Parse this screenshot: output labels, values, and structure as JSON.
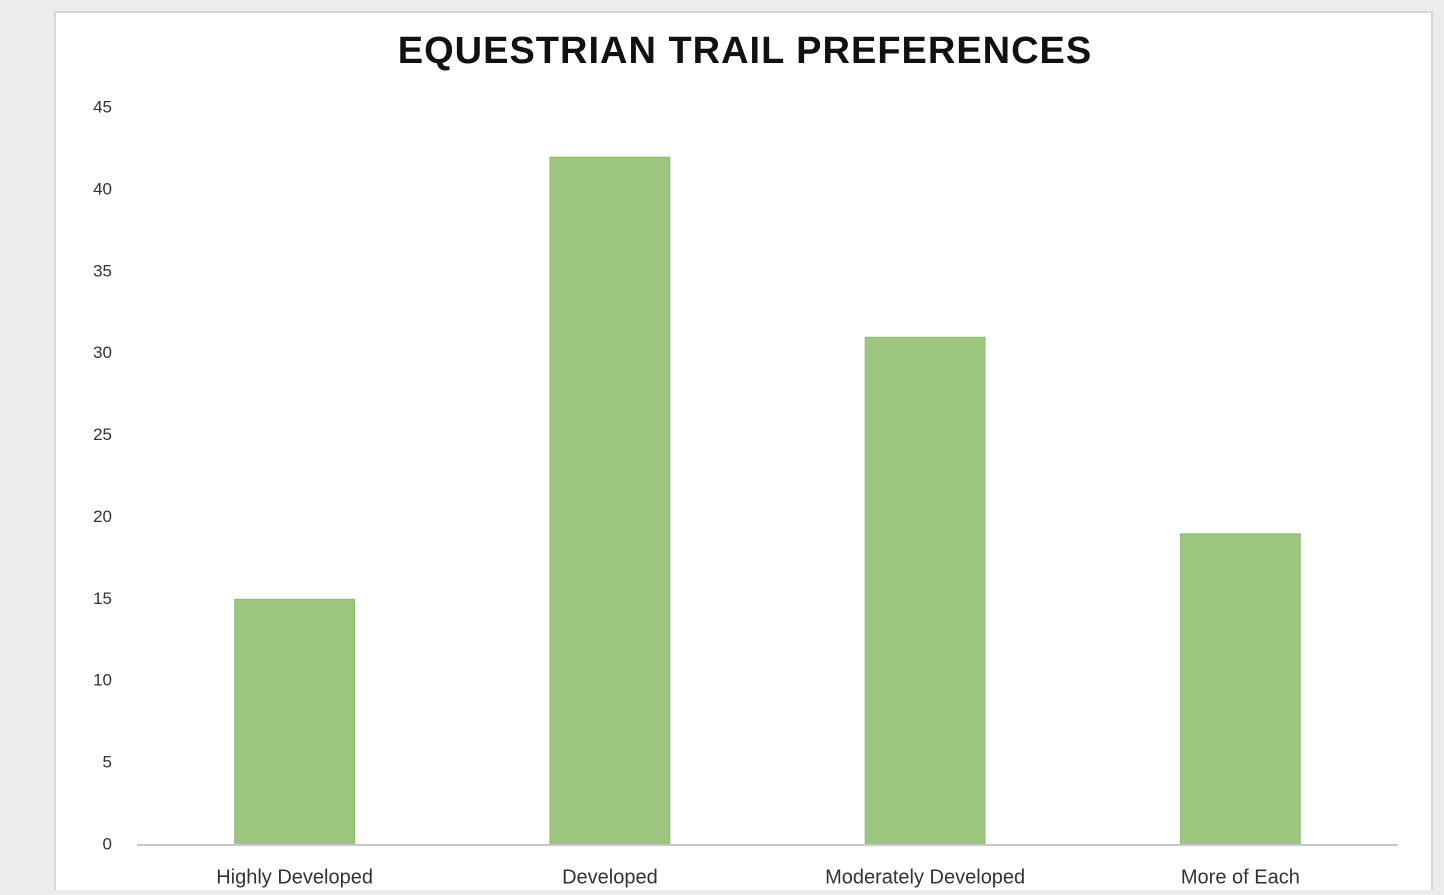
{
  "chart_data": {
    "type": "bar",
    "title": "EQUESTRIAN TRAIL PREFERENCES",
    "categories": [
      "Highly Developed",
      "Developed",
      "Moderately Developed",
      "More of Each"
    ],
    "values": [
      15,
      42,
      31,
      19
    ],
    "color": "#9cc57f",
    "ylim": [
      0,
      45
    ],
    "yticks": [
      0,
      5,
      10,
      15,
      20,
      25,
      30,
      35,
      40,
      45
    ],
    "grid": false
  }
}
